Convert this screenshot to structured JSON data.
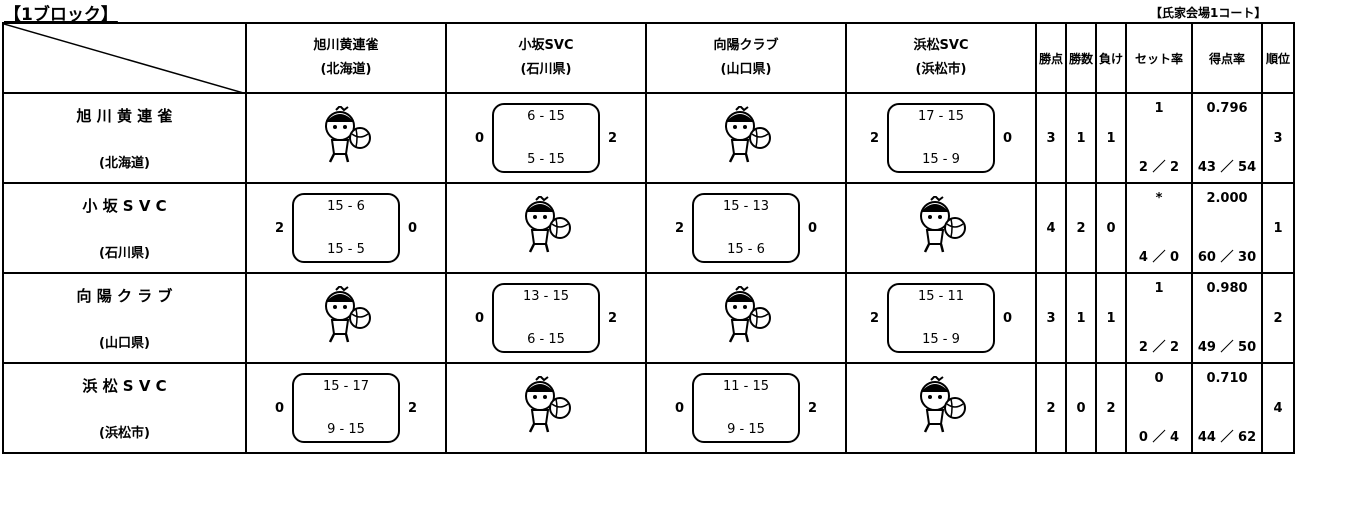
{
  "header": {
    "title": "【1ブロック】",
    "venue": "【氏家会場1コート】"
  },
  "table": {
    "teams": [
      {
        "name": "旭川黄連雀",
        "region": "(北海道)"
      },
      {
        "name": "小坂SVC",
        "region": "(石川県)"
      },
      {
        "name": "向陽クラブ",
        "region": "(山口県)"
      },
      {
        "name": "浜松SVC",
        "region": "(浜松市)"
      }
    ],
    "stat_headers": [
      "勝点",
      "勝数",
      "負け",
      "セット率",
      "得点率",
      "順位"
    ],
    "rows": [
      {
        "name": "旭 川 黄 連 雀",
        "region": "(北海道)",
        "results": [
          null,
          {
            "left": "0",
            "top": "6 - 15",
            "bottom": "5 - 15",
            "right": "2"
          },
          null,
          {
            "left": "2",
            "top": "17 - 15",
            "bottom": "15 - 9",
            "right": "0"
          }
        ],
        "points": "3",
        "wins": "1",
        "losses": "1",
        "set_rate": "1",
        "sets": "2 ／ 2",
        "point_rate": "0.796",
        "score": "43 ／ 54",
        "rank": "3"
      },
      {
        "name": "小 坂 S V C",
        "region": "(石川県)",
        "results": [
          {
            "left": "2",
            "top": "15 - 6",
            "bottom": "15 - 5",
            "right": "0"
          },
          null,
          {
            "left": "2",
            "top": "15 - 13",
            "bottom": "15 - 6",
            "right": "0"
          },
          null
        ],
        "points": "4",
        "wins": "2",
        "losses": "0",
        "set_rate": "*",
        "sets": "4 ／ 0",
        "point_rate": "2.000",
        "score": "60 ／ 30",
        "rank": "1"
      },
      {
        "name": "向 陽 ク ラ ブ",
        "region": "(山口県)",
        "results": [
          null,
          {
            "left": "0",
            "top": "13 - 15",
            "bottom": "6 - 15",
            "right": "2"
          },
          null,
          {
            "left": "2",
            "top": "15 - 11",
            "bottom": "15 - 9",
            "right": "0"
          }
        ],
        "points": "3",
        "wins": "1",
        "losses": "1",
        "set_rate": "1",
        "sets": "2 ／ 2",
        "point_rate": "0.980",
        "score": "49 ／ 50",
        "rank": "2"
      },
      {
        "name": "浜 松 S V C",
        "region": "(浜松市)",
        "results": [
          {
            "left": "0",
            "top": "15 - 17",
            "bottom": "9 - 15",
            "right": "2"
          },
          null,
          {
            "left": "0",
            "top": "11 - 15",
            "bottom": "9 - 15",
            "right": "2"
          },
          null
        ],
        "points": "2",
        "wins": "0",
        "losses": "2",
        "set_rate": "0",
        "sets": "0 ／ 4",
        "point_rate": "0.710",
        "score": "44 ／ 62",
        "rank": "4"
      }
    ]
  }
}
